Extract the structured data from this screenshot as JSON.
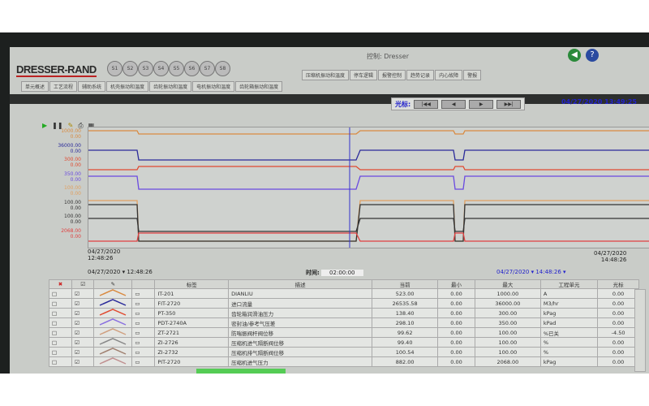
{
  "window": {
    "title": "控制: Dresser",
    "brand": "DRESSER-RAND",
    "unit_buttons": [
      "S1",
      "S2",
      "S3",
      "S4",
      "S5",
      "S6",
      "S7",
      "S8"
    ]
  },
  "tabs_top": [
    "压缩机振动和温度",
    "停车逻辑",
    "报警控制",
    "趋势记录",
    "内心故障",
    "警报"
  ],
  "tabs_bottom": [
    "单元概述",
    "工艺流程",
    "辅助系统",
    "机壳振动和温度",
    "齿轮振动和温度",
    "电机振动和温度",
    "齿轮箱振动和温度"
  ],
  "toolbar": {
    "cursor_label": "光标:",
    "buttons": [
      "|◀◀",
      "◀",
      "▶",
      "▶▶|"
    ],
    "datetime": "04/27/2020 13:49:25"
  },
  "axis_labels": [
    {
      "max": "1000.00",
      "min": "0.00",
      "color": "#d98a40"
    },
    {
      "max": "36000.00",
      "min": "0.00",
      "color": "#2a2a9a"
    },
    {
      "max": "300.00",
      "min": "0.00",
      "color": "#e04a30"
    },
    {
      "max": "350.00",
      "min": "0.00",
      "color": "#6a4ae0"
    },
    {
      "max": "100.00",
      "min": "0.00",
      "color": "#e0a060"
    },
    {
      "max": "100.00",
      "min": "0.00",
      "color": "#333333"
    },
    {
      "max": "100.00",
      "min": "0.00",
      "color": "#333333"
    },
    {
      "max": "2068.00",
      "min": "0.00",
      "color": "#e04040"
    }
  ],
  "time_axis": {
    "start_date": "04/27/2020",
    "start_time": "12:48:26",
    "end_date": "04/27/2020",
    "end_time": "14:48:26"
  },
  "range": {
    "start_date": "04/27/2020",
    "start_time": "12:48:26",
    "duration_label": "时间:",
    "duration": "02:00:00",
    "end_date": "04/27/2020",
    "end_time": "14:48:26"
  },
  "table": {
    "headers": [
      "标签",
      "描述",
      "当前",
      "最小",
      "最大",
      "工程单元",
      "光标"
    ],
    "rows": [
      {
        "tag": "IT-201",
        "desc": "DIANLIU",
        "current": "523.00",
        "min": "0.00",
        "max": "1000.00",
        "unit": "A",
        "cursor": "0.00",
        "color": "#d98a40"
      },
      {
        "tag": "FIT-2720",
        "desc": "进口流量",
        "current": "26535.58",
        "min": "0.00",
        "max": "36000.00",
        "unit": "M3/hr",
        "cursor": "0.00",
        "color": "#2a2a9a"
      },
      {
        "tag": "PT-350",
        "desc": "齿轮箱润滑油压力",
        "current": "138.40",
        "min": "0.00",
        "max": "300.00",
        "unit": "kPag",
        "cursor": "0.00",
        "color": "#e04a30"
      },
      {
        "tag": "PDT-2740A",
        "desc": "密封油/参考气压差",
        "current": "298.10",
        "min": "0.00",
        "max": "350.00",
        "unit": "kPad",
        "cursor": "0.00",
        "color": "#8a70e0"
      },
      {
        "tag": "ZT-2721",
        "desc": "防喘振阀杆阀位移",
        "current": "99.62",
        "min": "0.00",
        "max": "100.00",
        "unit": "%已关",
        "cursor": "-4.50",
        "color": "#d0a080"
      },
      {
        "tag": "ZI-2726",
        "desc": "压缩机进气隔断阀位移",
        "current": "99.40",
        "min": "0.00",
        "max": "100.00",
        "unit": "%",
        "cursor": "0.00",
        "color": "#888888"
      },
      {
        "tag": "ZI-2732",
        "desc": "压缩机排气隔断阀位移",
        "current": "100.54",
        "min": "0.00",
        "max": "100.00",
        "unit": "%",
        "cursor": "0.00",
        "color": "#a08070"
      },
      {
        "tag": "PIT-2720",
        "desc": "压缩机进气压力",
        "current": "882.00",
        "min": "0.00",
        "max": "2068.00",
        "unit": "kPag",
        "cursor": "0.00",
        "color": "#c09090"
      }
    ]
  }
}
